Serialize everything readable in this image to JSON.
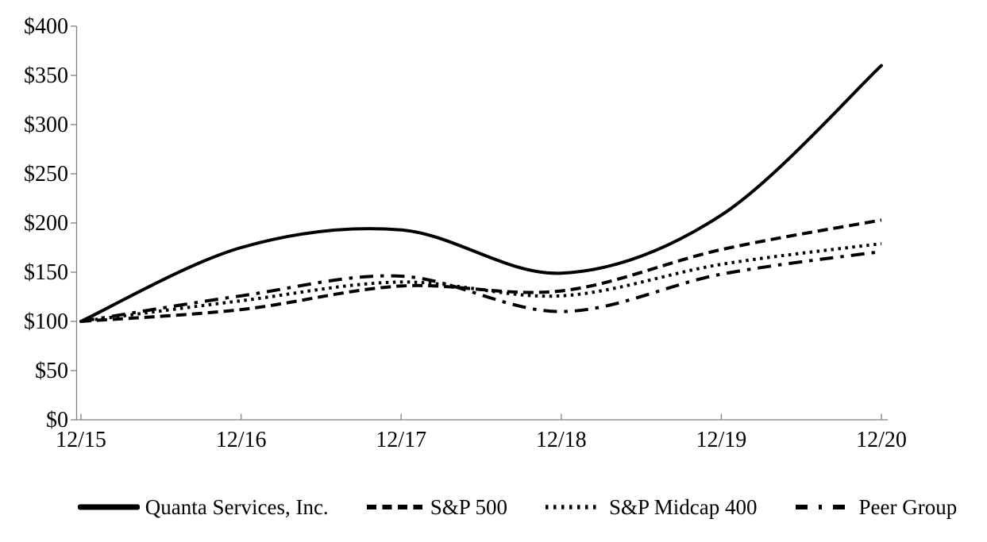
{
  "chart_data": {
    "type": "line",
    "title": "",
    "xlabel": "",
    "ylabel": "",
    "x_categories": [
      "12/15",
      "12/16",
      "12/17",
      "12/18",
      "12/19",
      "12/20"
    ],
    "y_tick_labels": [
      "$0",
      "$50",
      "$100",
      "$150",
      "$200",
      "$250",
      "$300",
      "$350",
      "$400"
    ],
    "y_tick_values": [
      0,
      50,
      100,
      150,
      200,
      250,
      300,
      350,
      400
    ],
    "ylim": [
      0,
      400
    ],
    "grid": false,
    "smoothed_lines": true,
    "legend_position": "bottom",
    "line_color": "#000000",
    "axis_color": "#808080",
    "series": [
      {
        "name": "Quanta Services, Inc.",
        "line_style": "solid",
        "color": "#000000",
        "values": [
          100,
          175,
          193,
          149,
          208,
          360
        ]
      },
      {
        "name": "S&P 500",
        "line_style": "dashed",
        "color": "#000000",
        "values": [
          100,
          112,
          136,
          131,
          173,
          203
        ]
      },
      {
        "name": "S&P Midcap 400",
        "line_style": "dotted",
        "color": "#000000",
        "values": [
          100,
          121,
          140,
          126,
          158,
          179
        ]
      },
      {
        "name": "Peer Group",
        "line_style": "dash-dot",
        "color": "#000000",
        "values": [
          100,
          126,
          146,
          110,
          148,
          171
        ]
      }
    ]
  }
}
